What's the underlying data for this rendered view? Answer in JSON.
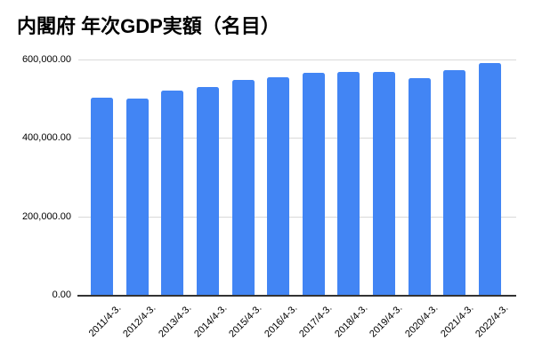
{
  "colors": {
    "bar": "#4285f4",
    "grid": "#d9d9d9",
    "axis": "#333333",
    "label": "#000000",
    "title": "#000000",
    "background": "#ffffff"
  },
  "chart_data": {
    "type": "bar",
    "title": "内閣府 年次GDP実額（名目）",
    "categories": [
      "2011/4-3.",
      "2012/4-3.",
      "2013/4-3.",
      "2014/4-3.",
      "2015/4-3.",
      "2016/4-3.",
      "2017/4-3.",
      "2018/4-3.",
      "2019/4-3.",
      "2020/4-3.",
      "2021/4-3.",
      "2022/4-3."
    ],
    "values": [
      503000,
      501000,
      520000,
      531000,
      548000,
      554000,
      567000,
      569000,
      568000,
      552000,
      574000,
      590000
    ],
    "xlabel": "",
    "ylabel": "",
    "ylim": [
      0,
      600000
    ],
    "yticks": [
      0,
      200000,
      400000,
      600000
    ],
    "ytick_labels": [
      "0.00",
      "200,000.00",
      "400,000.00",
      "600,000.00"
    ],
    "grid": true,
    "legend": false,
    "x_label_rotation_deg": 45
  }
}
